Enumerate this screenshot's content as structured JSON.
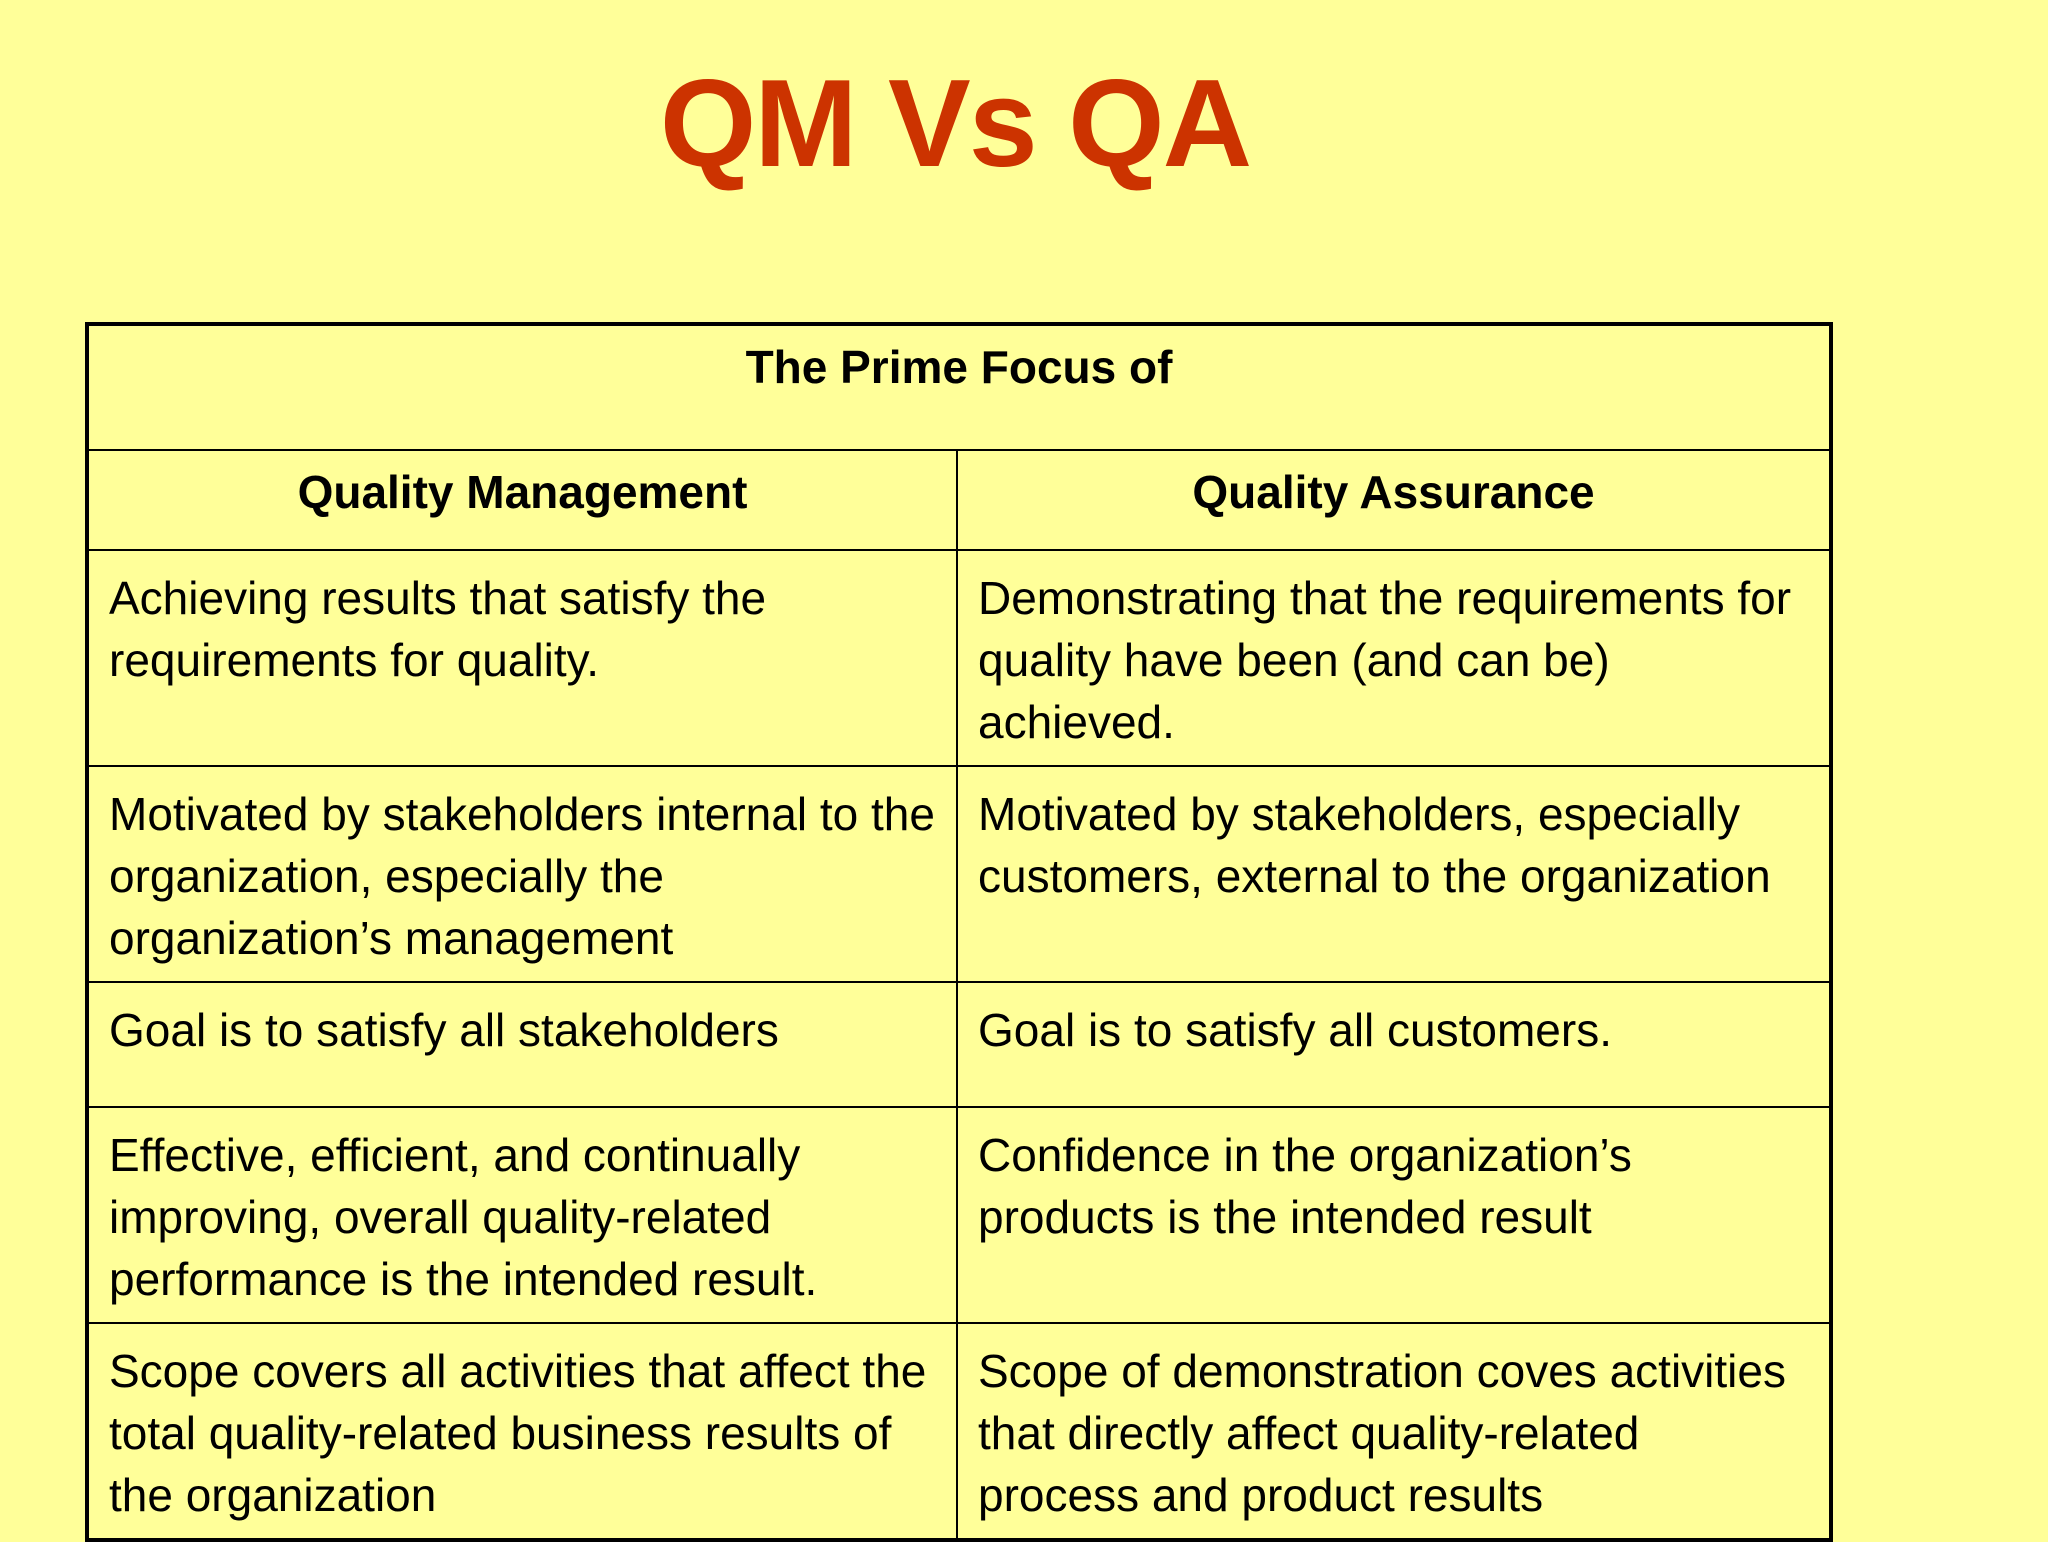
{
  "title": "QM Vs QA",
  "table": {
    "header": "The Prime Focus of",
    "columns": [
      "Quality Management",
      "Quality Assurance"
    ],
    "rows": [
      {
        "qm": "Achieving results that satisfy the requirements for quality.",
        "qa": "Demonstrating that the requirements for quality have been (and can be) achieved."
      },
      {
        "qm": "Motivated by stakeholders internal to the organization, especially the organization’s management",
        "qa": "Motivated by stakeholders, especially customers, external to the organization"
      },
      {
        "qm": "Goal is to satisfy all stakeholders",
        "qa": "Goal is to satisfy all customers."
      },
      {
        "qm": "Effective, efficient, and continually improving, overall quality-related performance is the intended result.",
        "qa": "Confidence in the organization’s products is the intended result"
      },
      {
        "qm": "Scope covers all activities that affect the total quality-related business results of the organization",
        "qa": "Scope of demonstration coves activities that directly affect quality-related process and product results"
      }
    ]
  },
  "colors": {
    "background": "#FFFF99",
    "title": "#CC3300",
    "text": "#000000"
  }
}
